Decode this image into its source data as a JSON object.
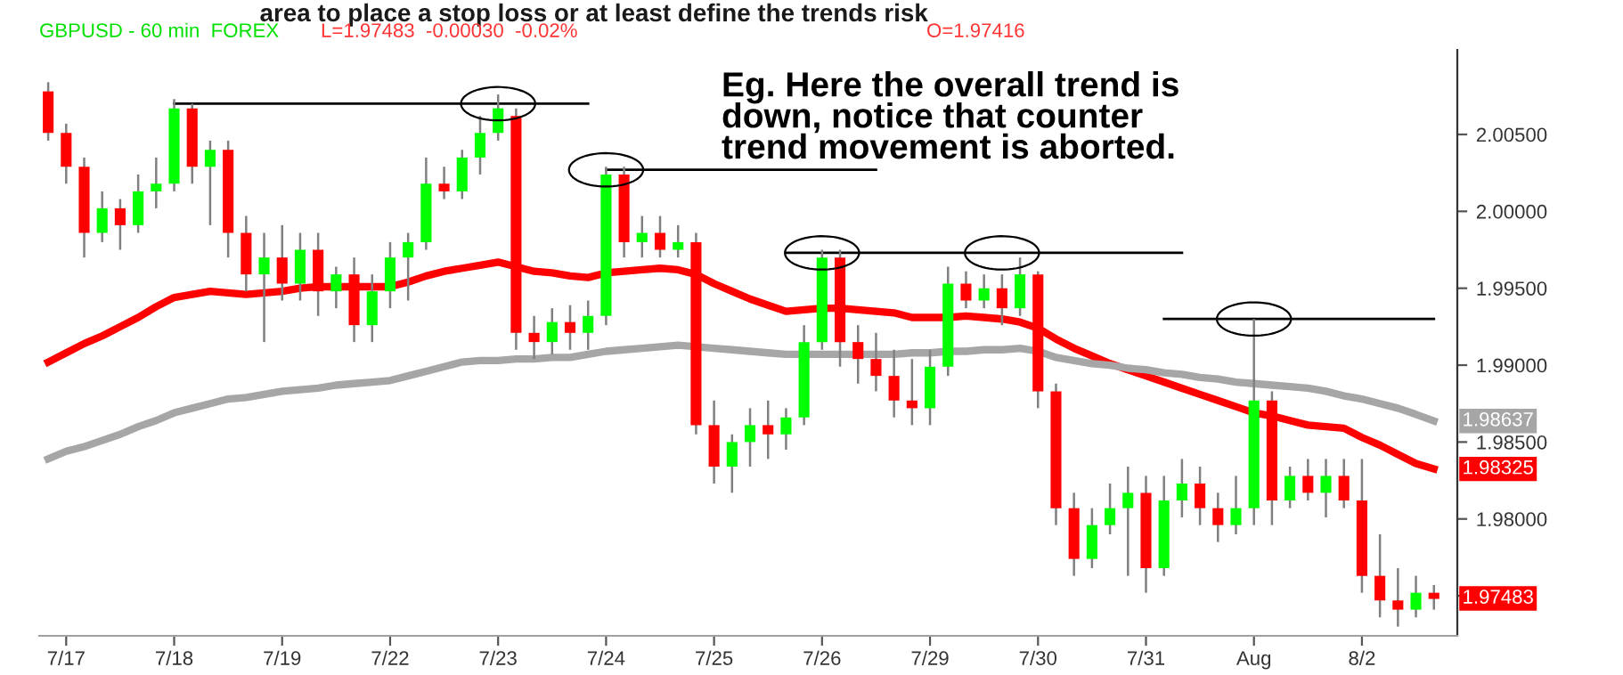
{
  "chart_data": {
    "type": "candlestick",
    "title": "area to place a stop loss or at least define the trends risk",
    "subtitle": "GBPUSD - 60 min  FOREX",
    "annotations": [
      "L=1.97483  -0.00030  -0.02%",
      "O=1.97416",
      "Eg. Here the overall trend is\ndown, notice that counter\ntrend movement is aborted.",
      {
        "text": "1.97483",
        "y": 1.97483
      }
    ],
    "categories": [
      null,
      "7/17",
      null,
      null,
      null,
      null,
      null,
      "7/18",
      null,
      null,
      null,
      null,
      null,
      "7/19",
      null,
      null,
      null,
      null,
      null,
      "7/22",
      null,
      null,
      null,
      null,
      null,
      "7/23",
      null,
      null,
      null,
      null,
      null,
      "7/24",
      null,
      null,
      null,
      null,
      null,
      "7/25",
      null,
      null,
      null,
      null,
      null,
      "7/26",
      null,
      null,
      null,
      null,
      null,
      "7/29",
      null,
      null,
      null,
      null,
      null,
      "7/30",
      null,
      null,
      null,
      null,
      null,
      "7/31",
      null,
      null,
      null,
      null,
      null,
      "Aug",
      null,
      null,
      null,
      null,
      null,
      "8/2",
      null,
      null,
      null,
      null
    ],
    "ohlc": [
      [
        2.0078,
        2.0084,
        2.0046,
        2.0051
      ],
      [
        2.0051,
        2.0057,
        2.0018,
        2.0029
      ],
      [
        2.0029,
        2.0035,
        1.997,
        1.9986
      ],
      [
        1.9986,
        2.0013,
        1.998,
        2.0002
      ],
      [
        2.0002,
        2.0008,
        1.9975,
        1.9991
      ],
      [
        1.9991,
        2.0024,
        1.9986,
        2.0013
      ],
      [
        2.0013,
        2.0035,
        2.0002,
        2.0018
      ],
      [
        2.0018,
        2.0073,
        2.0013,
        2.0067
      ],
      [
        2.0067,
        2.007,
        2.0018,
        2.0029
      ],
      [
        2.0029,
        2.0046,
        1.9991,
        2.004
      ],
      [
        2.004,
        2.0046,
        1.997,
        1.9986
      ],
      [
        1.9986,
        1.9997,
        1.9948,
        1.9959
      ],
      [
        1.9959,
        1.9986,
        1.9915,
        1.997
      ],
      [
        1.997,
        1.9991,
        1.9942,
        1.9953
      ],
      [
        1.9953,
        1.9986,
        1.9942,
        1.9975
      ],
      [
        1.9975,
        1.9986,
        1.9932,
        1.9948
      ],
      [
        1.9948,
        1.9964,
        1.9937,
        1.9959
      ],
      [
        1.9959,
        1.997,
        1.9915,
        1.9926
      ],
      [
        1.9926,
        1.9959,
        1.9915,
        1.9948
      ],
      [
        1.9948,
        1.998,
        1.9937,
        1.997
      ],
      [
        1.997,
        1.9986,
        1.9942,
        1.998
      ],
      [
        1.998,
        2.0035,
        1.9975,
        2.0018
      ],
      [
        2.0018,
        2.0029,
        2.0008,
        2.0013
      ],
      [
        2.0013,
        2.004,
        2.0008,
        2.0035
      ],
      [
        2.0035,
        2.0062,
        2.0024,
        2.0051
      ],
      [
        2.0051,
        2.0076,
        2.0046,
        2.0067
      ],
      [
        2.0062,
        2.0067,
        1.991,
        1.9921
      ],
      [
        1.9921,
        1.9932,
        1.9904,
        1.9915
      ],
      [
        1.9915,
        1.9937,
        1.9907,
        1.9928
      ],
      [
        1.9928,
        1.9939,
        1.991,
        1.9921
      ],
      [
        1.9921,
        1.9942,
        1.991,
        1.9932
      ],
      [
        1.9932,
        2.0029,
        1.9926,
        2.0024
      ],
      [
        2.0024,
        2.0029,
        1.997,
        1.998
      ],
      [
        1.998,
        1.9997,
        1.997,
        1.9986
      ],
      [
        1.9986,
        1.9997,
        1.997,
        1.9975
      ],
      [
        1.9975,
        1.9991,
        1.997,
        1.998
      ],
      [
        1.998,
        1.9986,
        1.9855,
        1.9861
      ],
      [
        1.9861,
        1.9877,
        1.9823,
        1.9834
      ],
      [
        1.9834,
        1.9855,
        1.9817,
        1.985
      ],
      [
        1.985,
        1.9872,
        1.9834,
        1.9861
      ],
      [
        1.9861,
        1.9877,
        1.9839,
        1.9855
      ],
      [
        1.9855,
        1.9872,
        1.9845,
        1.9866
      ],
      [
        1.9866,
        1.9926,
        1.9861,
        1.9915
      ],
      [
        1.9915,
        1.9975,
        1.991,
        1.997
      ],
      [
        1.997,
        1.9975,
        1.9899,
        1.9915
      ],
      [
        1.9915,
        1.9926,
        1.9888,
        1.9904
      ],
      [
        1.9904,
        1.9921,
        1.9883,
        1.9893
      ],
      [
        1.9893,
        1.991,
        1.9866,
        1.9877
      ],
      [
        1.9877,
        1.9904,
        1.9861,
        1.9872
      ],
      [
        1.9872,
        1.991,
        1.9861,
        1.9899
      ],
      [
        1.9899,
        1.9964,
        1.9893,
        1.9953
      ],
      [
        1.9953,
        1.9961,
        1.9937,
        1.9942
      ],
      [
        1.9942,
        1.9959,
        1.9937,
        1.995
      ],
      [
        1.995,
        1.9959,
        1.9926,
        1.9937
      ],
      [
        1.9937,
        1.997,
        1.9932,
        1.9959
      ],
      [
        1.9959,
        1.9961,
        1.9872,
        1.9883
      ],
      [
        1.9883,
        1.9888,
        1.9796,
        1.9807
      ],
      [
        1.9807,
        1.9817,
        1.9763,
        1.9774
      ],
      [
        1.9774,
        1.9807,
        1.9768,
        1.9796
      ],
      [
        1.9796,
        1.9823,
        1.979,
        1.9807
      ],
      [
        1.9807,
        1.9834,
        1.9763,
        1.9817
      ],
      [
        1.9817,
        1.9828,
        1.9752,
        1.9768
      ],
      [
        1.9768,
        1.9828,
        1.9763,
        1.9812
      ],
      [
        1.9812,
        1.9839,
        1.9801,
        1.9823
      ],
      [
        1.9823,
        1.9834,
        1.9796,
        1.9807
      ],
      [
        1.9807,
        1.9817,
        1.9785,
        1.9796
      ],
      [
        1.9796,
        1.9828,
        1.979,
        1.9807
      ],
      [
        1.9807,
        1.993,
        1.9796,
        1.9877
      ],
      [
        1.9877,
        1.9883,
        1.9796,
        1.9812
      ],
      [
        1.9812,
        1.9834,
        1.9807,
        1.9828
      ],
      [
        1.9828,
        1.9839,
        1.9812,
        1.9817
      ],
      [
        1.9817,
        1.9839,
        1.9801,
        1.9828
      ],
      [
        1.9828,
        1.9839,
        1.9807,
        1.9812
      ],
      [
        1.9812,
        1.9839,
        1.9752,
        1.9763
      ],
      [
        1.9763,
        1.979,
        1.9736,
        1.9747
      ],
      [
        1.9747,
        1.9768,
        1.973,
        1.9741
      ],
      [
        1.9741,
        1.9763,
        1.9736,
        1.9752
      ],
      [
        1.9752,
        1.9757,
        1.9741,
        1.9748
      ]
    ],
    "colors": [
      "#ff0000",
      "#ff0000",
      "#ff0000",
      "#00ff00",
      "#ff0000",
      "#00ff00",
      "#00ff00",
      "#00ff00",
      "#ff0000",
      "#00ff00",
      "#ff0000",
      "#ff0000",
      "#00ff00",
      "#ff0000",
      "#00ff00",
      "#ff0000",
      "#00ff00",
      "#ff0000",
      "#00ff00",
      "#00ff00",
      "#00ff00",
      "#00ff00",
      "#ff0000",
      "#00ff00",
      "#00ff00",
      "#00ff00",
      "#ff0000",
      "#ff0000",
      "#00ff00",
      "#ff0000",
      "#00ff00",
      "#00ff00",
      "#ff0000",
      "#00ff00",
      "#ff0000",
      "#00ff00",
      "#ff0000",
      "#ff0000",
      "#00ff00",
      "#00ff00",
      "#ff0000",
      "#00ff00",
      "#00ff00",
      "#00ff00",
      "#ff0000",
      "#ff0000",
      "#ff0000",
      "#ff0000",
      "#ff0000",
      "#00ff00",
      "#00ff00",
      "#ff0000",
      "#00ff00",
      "#ff0000",
      "#00ff00",
      "#ff0000",
      "#ff0000",
      "#ff0000",
      "#00ff00",
      "#00ff00",
      "#00ff00",
      "#ff0000",
      "#00ff00",
      "#00ff00",
      "#ff0000",
      "#ff0000",
      "#00ff00",
      "#00ff00",
      "#ff0000",
      "#00ff00",
      "#ff0000",
      "#00ff00",
      "#ff0000",
      "#ff0000",
      "#ff0000",
      "#ff0000",
      "#00ff00",
      "#ff0000"
    ],
    "series": [
      {
        "type": "line",
        "color": "#ff0000",
        "values": [
          1.9902,
          1.9908,
          1.9914,
          1.9919,
          1.9925,
          1.9931,
          1.9938,
          1.9944,
          1.9946,
          1.9948,
          1.9947,
          1.9946,
          1.9947,
          1.9948,
          1.995,
          1.9951,
          1.9951,
          1.9951,
          1.9951,
          1.9951,
          1.9954,
          1.9958,
          1.9961,
          1.9963,
          1.9965,
          1.9967,
          1.9964,
          1.9961,
          1.996,
          1.9958,
          1.9957,
          1.996,
          1.9961,
          1.9962,
          1.9963,
          1.9962,
          1.9959,
          1.9953,
          1.9948,
          1.9943,
          1.9939,
          1.9935,
          1.9936,
          1.9937,
          1.9937,
          1.9936,
          1.9935,
          1.9934,
          1.9931,
          1.9931,
          1.9931,
          1.9932,
          1.9931,
          1.993,
          1.9928,
          1.9924,
          1.9917,
          1.9911,
          1.9906,
          1.9901,
          1.9897,
          1.9893,
          1.9889,
          1.9885,
          1.9881,
          1.9877,
          1.9873,
          1.9869,
          1.9867,
          1.9864,
          1.9861,
          1.986,
          1.9859,
          1.9853,
          1.9848,
          1.9842,
          1.9836,
          1.98325
        ],
        "value_labels": [
          null,
          null,
          null,
          null,
          null,
          null,
          null,
          null,
          null,
          null,
          null,
          null,
          null,
          null,
          null,
          null,
          null,
          null,
          null,
          null,
          null,
          null,
          null,
          null,
          null,
          null,
          null,
          null,
          null,
          null,
          null,
          null,
          null,
          null,
          null,
          null,
          null,
          null,
          null,
          null,
          null,
          null,
          null,
          null,
          null,
          null,
          null,
          null,
          null,
          null,
          null,
          null,
          null,
          null,
          null,
          null,
          null,
          null,
          null,
          null,
          null,
          null,
          null,
          null,
          null,
          null,
          null,
          null,
          null,
          null,
          null,
          null,
          null,
          null,
          null,
          null,
          null,
          "1.98325"
        ]
      },
      {
        "type": "line",
        "color": "#a6a6a6",
        "values": [
          1.9839,
          1.9844,
          1.9847,
          1.9851,
          1.9855,
          1.986,
          1.9864,
          1.9869,
          1.9872,
          1.9875,
          1.9878,
          1.9879,
          1.9881,
          1.9883,
          1.9884,
          1.9885,
          1.9887,
          1.9888,
          1.9889,
          1.989,
          1.9893,
          1.9896,
          1.9899,
          1.9902,
          1.9903,
          1.9903,
          1.9904,
          1.9904,
          1.9905,
          1.9905,
          1.9907,
          1.9909,
          1.991,
          1.9911,
          1.9912,
          1.9913,
          1.9912,
          1.9911,
          1.991,
          1.9909,
          1.9908,
          1.9907,
          1.9907,
          1.9907,
          1.9907,
          1.9907,
          1.9907,
          1.9907,
          1.9908,
          1.9908,
          1.9909,
          1.9909,
          1.991,
          1.991,
          1.9911,
          1.9909,
          1.9905,
          1.9903,
          1.9901,
          1.99,
          1.9898,
          1.9897,
          1.9895,
          1.9894,
          1.9892,
          1.9891,
          1.9889,
          1.9888,
          1.9887,
          1.9886,
          1.9885,
          1.9883,
          1.988,
          1.9878,
          1.9875,
          1.9872,
          1.9868,
          1.98637
        ],
        "value_labels": [
          null,
          null,
          null,
          null,
          null,
          null,
          null,
          null,
          null,
          null,
          null,
          null,
          null,
          null,
          null,
          null,
          null,
          null,
          null,
          null,
          null,
          null,
          null,
          null,
          null,
          null,
          null,
          null,
          null,
          null,
          null,
          null,
          null,
          null,
          null,
          null,
          null,
          null,
          null,
          null,
          null,
          null,
          null,
          null,
          null,
          null,
          null,
          null,
          null,
          null,
          null,
          null,
          null,
          null,
          null,
          null,
          null,
          null,
          null,
          null,
          null,
          null,
          null,
          null,
          null,
          null,
          null,
          null,
          null,
          null,
          null,
          null,
          null,
          null,
          null,
          null,
          null,
          "1.98637"
        ]
      },
      {
        "type": "line",
        "color": "#000000",
        "values": [
          null,
          null,
          null,
          null,
          null,
          null,
          null,
          2.007,
          2.007,
          2.007,
          2.007,
          2.007,
          2.007,
          2.007,
          2.007,
          2.007,
          2.007,
          2.007,
          2.007,
          2.007,
          2.007,
          2.007,
          2.007,
          2.007,
          2.007,
          2.007,
          2.007,
          2.007,
          2.007,
          2.007,
          2.007,
          null,
          null,
          null,
          null,
          null,
          null,
          null,
          null,
          null,
          null,
          null,
          null,
          null,
          null,
          null,
          null,
          null,
          null,
          null,
          null,
          null,
          null,
          null,
          null,
          null,
          null,
          null,
          null,
          null,
          null,
          null,
          null,
          null,
          null,
          null,
          null,
          null,
          null,
          null,
          null,
          null,
          null,
          null,
          null,
          null,
          null,
          null
        ]
      },
      {
        "type": "line",
        "color": "#000000",
        "values": [
          null,
          null,
          null,
          null,
          null,
          null,
          null,
          null,
          null,
          null,
          null,
          null,
          null,
          null,
          null,
          null,
          null,
          null,
          null,
          null,
          null,
          null,
          null,
          null,
          null,
          null,
          null,
          null,
          null,
          null,
          null,
          2.0027,
          2.0027,
          2.0027,
          2.0027,
          2.0027,
          2.0027,
          2.0027,
          2.0027,
          2.0027,
          2.0027,
          2.0027,
          2.0027,
          2.0027,
          2.0027,
          2.0027,
          2.0027,
          null,
          null,
          null,
          null,
          null,
          null,
          null,
          null,
          null,
          null,
          null,
          null,
          null,
          null,
          null,
          null,
          null,
          null,
          null,
          null,
          null,
          null,
          null,
          null,
          null,
          null,
          null,
          null,
          null,
          null,
          null
        ]
      },
      {
        "type": "line",
        "color": "#000000",
        "values": [
          null,
          null,
          null,
          null,
          null,
          null,
          null,
          null,
          null,
          null,
          null,
          null,
          null,
          null,
          null,
          null,
          null,
          null,
          null,
          null,
          null,
          null,
          null,
          null,
          null,
          null,
          null,
          null,
          null,
          null,
          null,
          null,
          null,
          null,
          null,
          null,
          null,
          null,
          null,
          null,
          null,
          1.9973,
          1.9973,
          1.9973,
          1.9973,
          1.9973,
          1.9973,
          1.9973,
          1.9973,
          1.9973,
          1.9973,
          1.9973,
          1.9973,
          1.9973,
          1.9973,
          1.9973,
          1.9973,
          1.9973,
          1.9973,
          1.9973,
          1.9973,
          1.9973,
          1.9973,
          1.9973,
          null,
          null,
          null,
          null,
          null,
          null,
          null,
          null,
          null,
          null,
          null,
          null,
          null,
          null
        ]
      },
      {
        "type": "line",
        "color": "#000000",
        "values": [
          null,
          null,
          null,
          null,
          null,
          null,
          null,
          null,
          null,
          null,
          null,
          null,
          null,
          null,
          null,
          null,
          null,
          null,
          null,
          null,
          null,
          null,
          null,
          null,
          null,
          null,
          null,
          null,
          null,
          null,
          null,
          null,
          null,
          null,
          null,
          null,
          null,
          null,
          null,
          null,
          null,
          null,
          null,
          null,
          null,
          null,
          null,
          null,
          null,
          null,
          null,
          null,
          null,
          null,
          null,
          null,
          null,
          null,
          null,
          null,
          null,
          null,
          1.993,
          1.993,
          1.993,
          1.993,
          1.993,
          1.993,
          1.993,
          1.993,
          1.993,
          1.993,
          1.993,
          1.993,
          1.993,
          1.993,
          1.993,
          1.993
        ]
      },
      {
        "type": "scatter",
        "color": "#000000",
        "marker": "circle",
        "values": [
          null,
          null,
          null,
          null,
          null,
          null,
          null,
          null,
          null,
          null,
          null,
          null,
          null,
          null,
          null,
          null,
          null,
          null,
          null,
          null,
          null,
          null,
          null,
          null,
          null,
          2.007,
          null,
          null,
          null,
          null,
          null,
          2.0027,
          null,
          null,
          null,
          null,
          null,
          null,
          null,
          null,
          null,
          null,
          null,
          1.9973,
          null,
          null,
          null,
          null,
          null,
          null,
          null,
          null,
          null,
          1.9973,
          null,
          null,
          null,
          null,
          null,
          null,
          null,
          null,
          null,
          null,
          null,
          null,
          null,
          1.993,
          null,
          null,
          null,
          null,
          null,
          null,
          null,
          null,
          null,
          null
        ]
      }
    ],
    "ylim": [
      1.9724,
      2.0105
    ],
    "yticks": [
      {
        "value": 1.975,
        "label": null
      },
      {
        "value": 1.98,
        "label": "1.98000"
      },
      {
        "value": 1.985,
        "label": "1.98500"
      },
      {
        "value": 1.99,
        "label": "1.99000"
      },
      {
        "value": 1.995,
        "label": "1.99500"
      },
      {
        "value": 2.0,
        "label": "2.00000"
      },
      {
        "value": 2.005,
        "label": "2.00500"
      }
    ]
  }
}
